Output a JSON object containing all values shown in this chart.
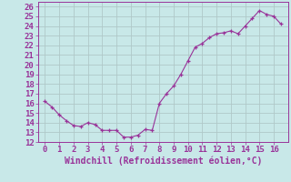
{
  "x": [
    0,
    0.5,
    1,
    1.5,
    2,
    2.5,
    3,
    3.5,
    4,
    4.5,
    5,
    5.5,
    6,
    6.5,
    7,
    7.5,
    8,
    8.5,
    9,
    9.5,
    10,
    10.5,
    11,
    11.5,
    12,
    12.5,
    13,
    13.5,
    14,
    14.5,
    15,
    15.5,
    16,
    16.5
  ],
  "y": [
    16.2,
    15.6,
    14.8,
    14.2,
    13.7,
    13.6,
    14.0,
    13.8,
    13.2,
    13.2,
    13.2,
    12.5,
    12.5,
    12.7,
    13.3,
    13.2,
    16.0,
    17.0,
    17.8,
    19.0,
    20.4,
    21.8,
    22.2,
    22.8,
    23.2,
    23.3,
    23.5,
    23.2,
    24.0,
    24.8,
    25.6,
    25.2,
    25.0,
    24.2
  ],
  "line_color": "#993399",
  "marker_color": "#993399",
  "bg_color": "#c8e8e8",
  "grid_color": "#b0c8c8",
  "axis_color": "#993399",
  "xlabel": "Windchill (Refroidissement éolien,°C)",
  "xlim": [
    -0.5,
    17.0
  ],
  "ylim": [
    12,
    26.5
  ],
  "xticks": [
    0,
    1,
    2,
    3,
    4,
    5,
    6,
    7,
    8,
    9,
    10,
    11,
    12,
    13,
    14,
    15,
    16
  ],
  "yticks": [
    12,
    13,
    14,
    15,
    16,
    17,
    18,
    19,
    20,
    21,
    22,
    23,
    24,
    25,
    26
  ],
  "fontsize_ticks": 6.5,
  "fontsize_label": 7.0
}
